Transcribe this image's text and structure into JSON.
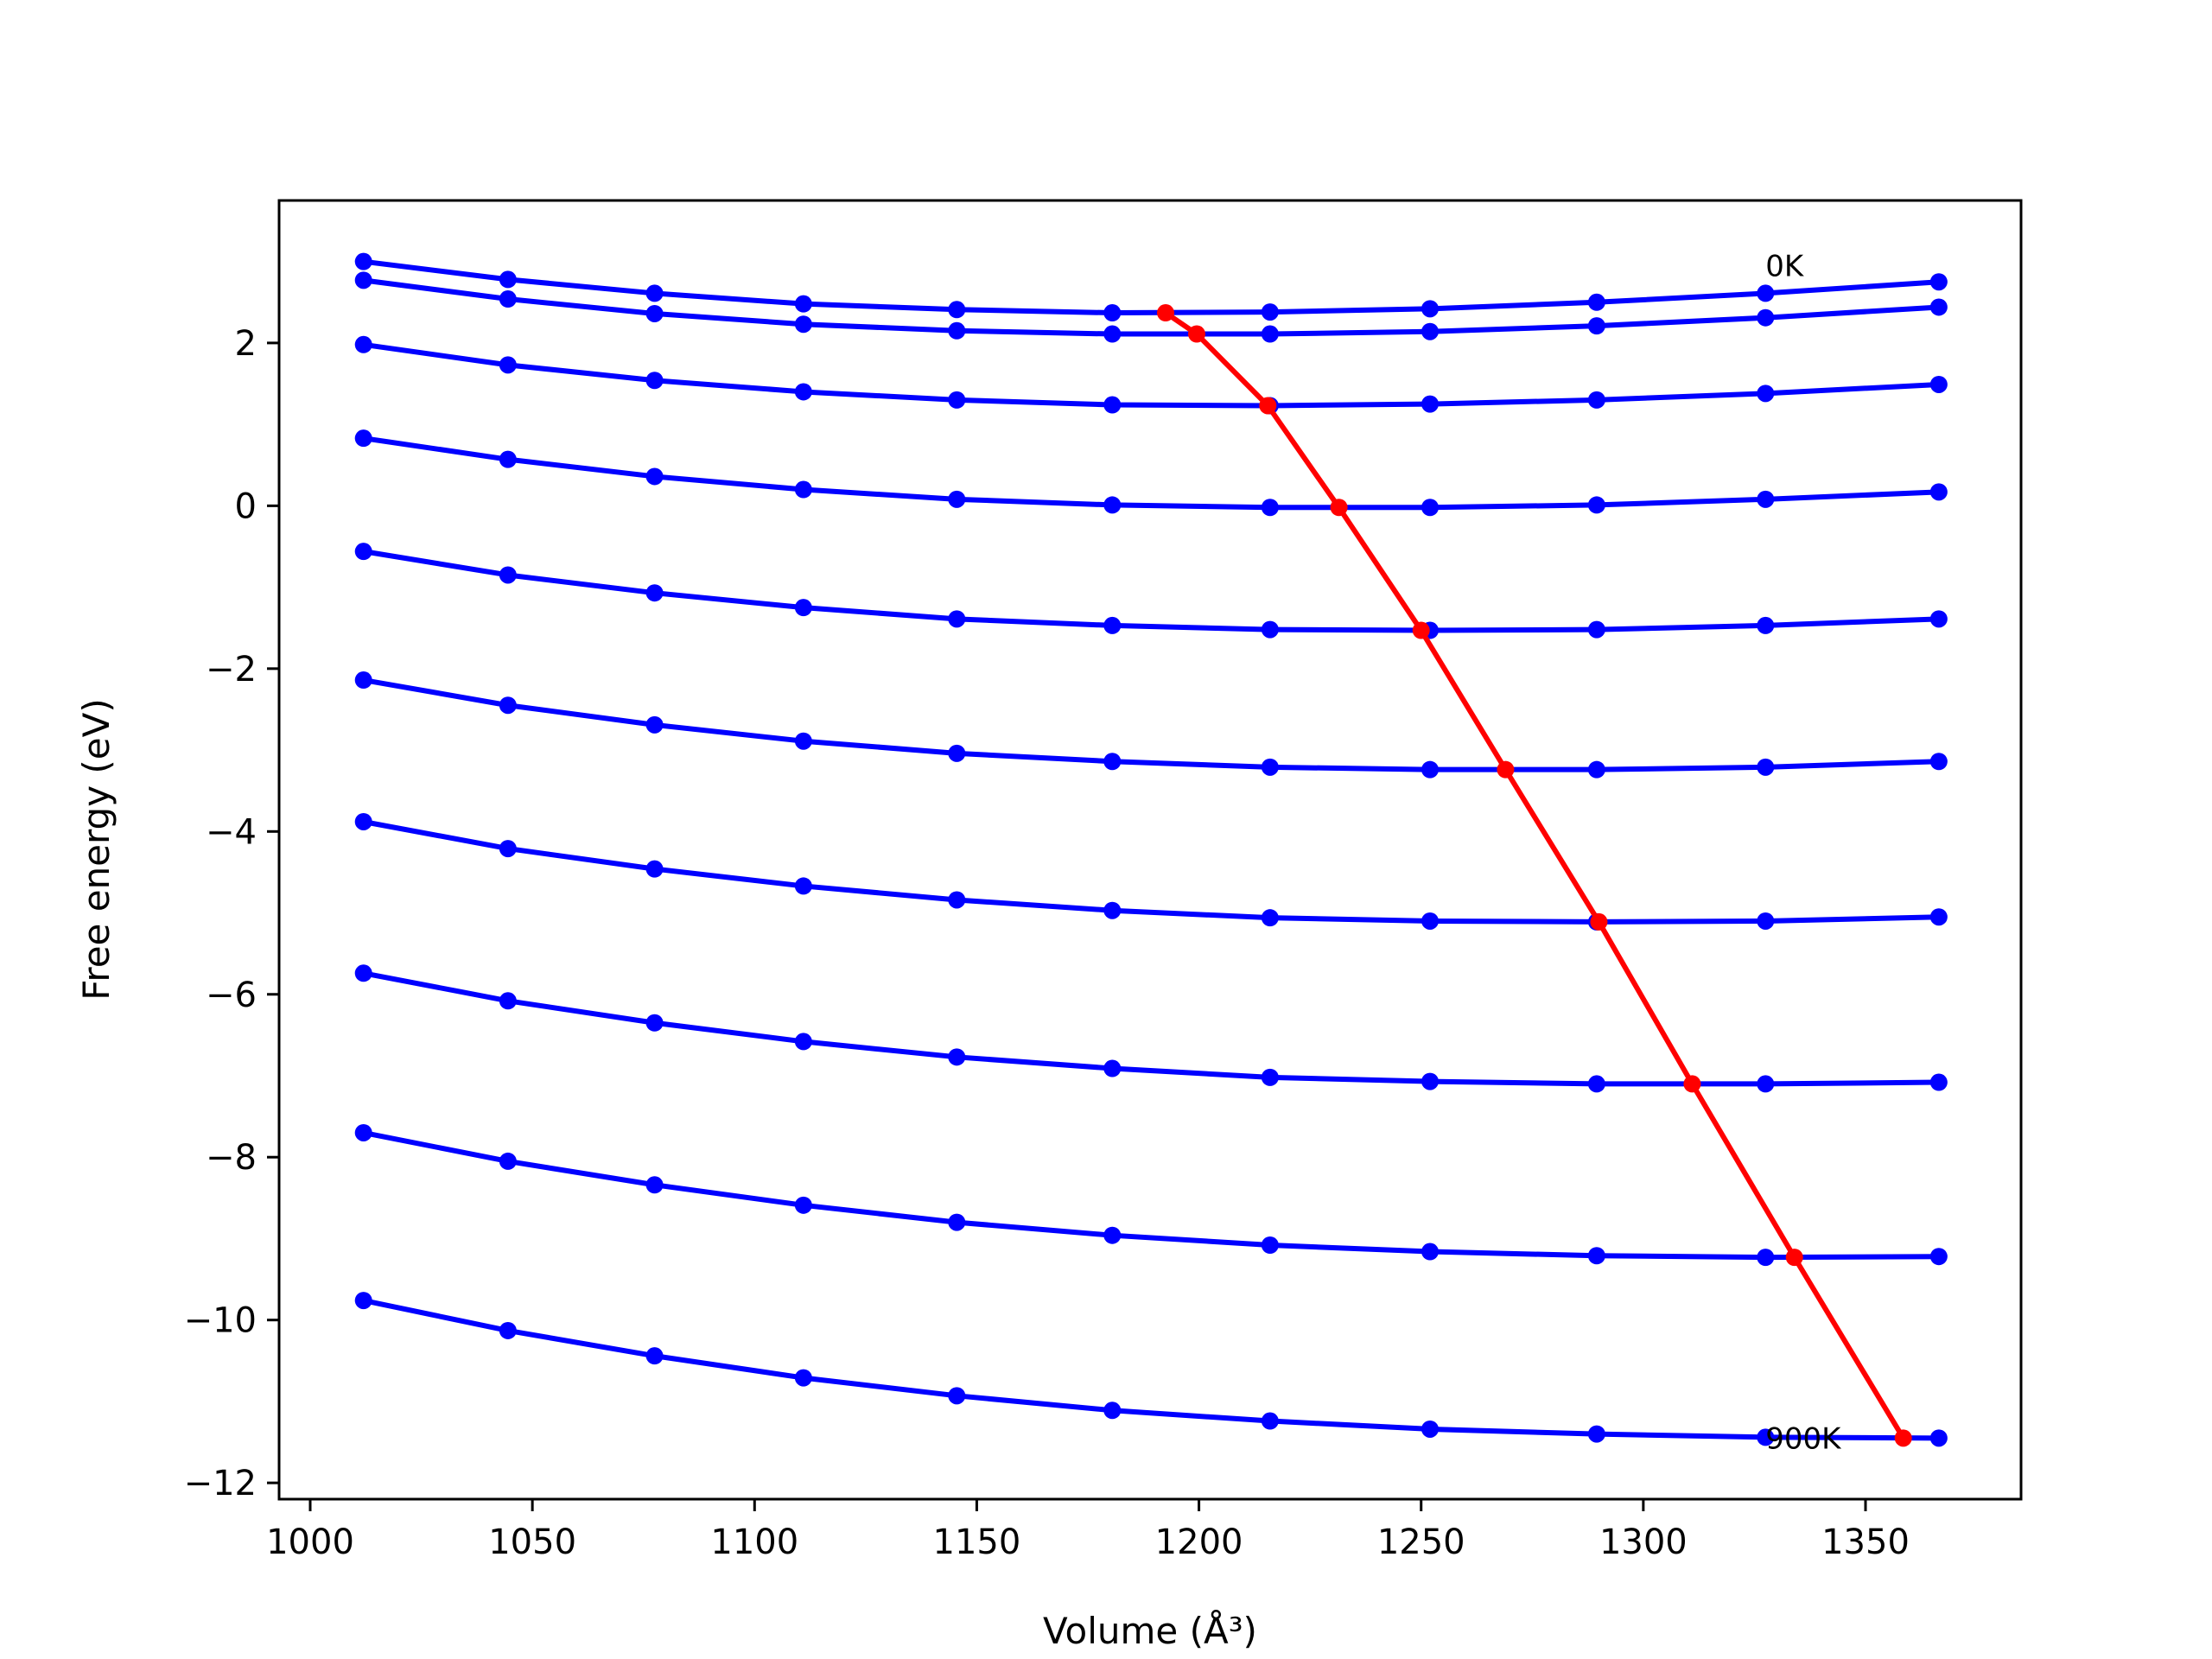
{
  "chart_data": {
    "type": "line",
    "xlabel": "Volume (Å³)",
    "ylabel": "Free energy (eV)",
    "xlim": [
      993,
      1385
    ],
    "ylim": [
      -12.2,
      3.75
    ],
    "xticks": [
      1000,
      1050,
      1100,
      1150,
      1200,
      1250,
      1300,
      1350
    ],
    "yticks": [
      2,
      0,
      -2,
      -4,
      -6,
      -8,
      -10,
      -12
    ],
    "x": [
      1012,
      1044.5,
      1077.5,
      1111,
      1145.5,
      1180.5,
      1216,
      1252,
      1289.5,
      1327.5,
      1366.5
    ],
    "grid": false,
    "legend": "none",
    "colors": {
      "isotherm": "#0000ff",
      "minimum": "#ff0000"
    },
    "series": [
      {
        "values": [
          3.0,
          2.78,
          2.61,
          2.48,
          2.41,
          2.37,
          2.38,
          2.42,
          2.5,
          2.61,
          2.75
        ]
      },
      {
        "values": [
          2.77,
          2.54,
          2.36,
          2.23,
          2.15,
          2.11,
          2.11,
          2.14,
          2.21,
          2.31,
          2.44
        ]
      },
      {
        "values": [
          1.98,
          1.73,
          1.54,
          1.4,
          1.3,
          1.24,
          1.23,
          1.25,
          1.3,
          1.38,
          1.49
        ]
      },
      {
        "values": [
          0.83,
          0.57,
          0.36,
          0.2,
          0.08,
          0.01,
          -0.02,
          -0.02,
          0.01,
          0.08,
          0.17
        ]
      },
      {
        "values": [
          -0.56,
          -0.85,
          -1.07,
          -1.25,
          -1.39,
          -1.47,
          -1.52,
          -1.53,
          -1.52,
          -1.47,
          -1.39
        ]
      },
      {
        "values": [
          -2.14,
          -2.45,
          -2.69,
          -2.89,
          -3.04,
          -3.14,
          -3.21,
          -3.24,
          -3.24,
          -3.21,
          -3.14
        ]
      },
      {
        "values": [
          -3.88,
          -4.21,
          -4.46,
          -4.67,
          -4.84,
          -4.97,
          -5.06,
          -5.1,
          -5.11,
          -5.1,
          -5.05
        ]
      },
      {
        "values": [
          -5.74,
          -6.08,
          -6.35,
          -6.58,
          -6.77,
          -6.91,
          -7.02,
          -7.07,
          -7.1,
          -7.1,
          -7.08
        ]
      },
      {
        "values": [
          -7.7,
          -8.05,
          -8.34,
          -8.59,
          -8.8,
          -8.96,
          -9.08,
          -9.16,
          -9.21,
          -9.23,
          -9.22
        ]
      },
      {
        "values": [
          -9.76,
          -10.13,
          -10.44,
          -10.71,
          -10.93,
          -11.11,
          -11.24,
          -11.34,
          -11.4,
          -11.44,
          -11.45
        ]
      }
    ],
    "minimum_curve": {
      "x": [
        1192.5,
        1199.5,
        1215.5,
        1231.5,
        1250,
        1269,
        1290,
        1311,
        1334,
        1358.5
      ],
      "y": [
        2.37,
        2.11,
        1.23,
        -0.02,
        -1.53,
        -3.24,
        -5.11,
        -7.1,
        -9.23,
        -11.45
      ]
    },
    "annotations": [
      {
        "text": "0K",
        "x": 1327.5,
        "y": 2.95
      },
      {
        "text": "900K",
        "x": 1327.5,
        "y": -11.45
      }
    ]
  }
}
